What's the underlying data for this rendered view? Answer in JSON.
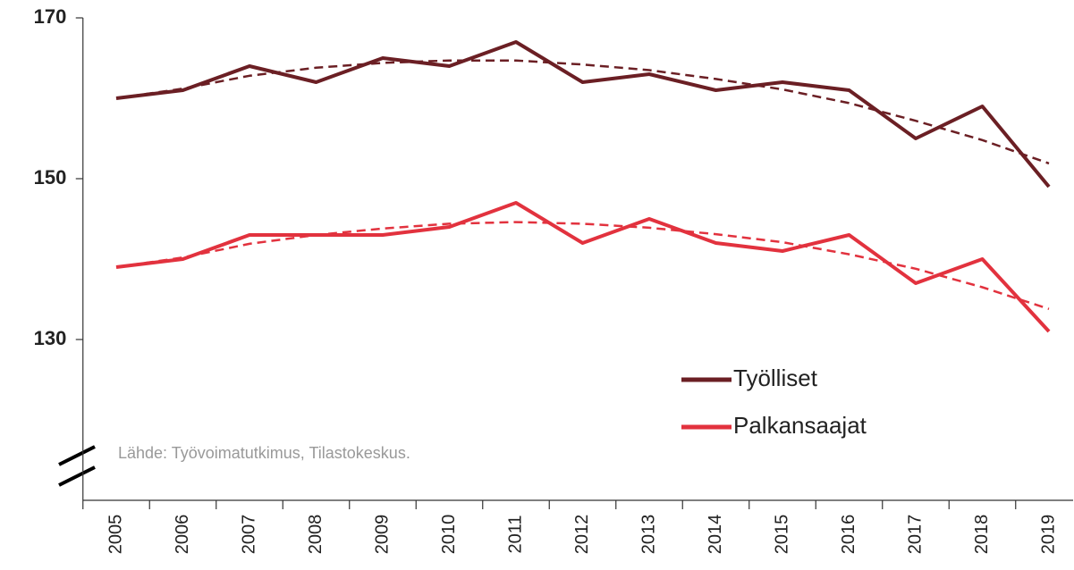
{
  "chart_data": {
    "type": "line",
    "categories": [
      "2005",
      "2006",
      "2007",
      "2008",
      "2009",
      "2010",
      "2011",
      "2012",
      "2013",
      "2014",
      "2015",
      "2016",
      "2017",
      "2018",
      "2019"
    ],
    "series": [
      {
        "name": "Työlliset",
        "color": "#6b1f24",
        "values": [
          160,
          161,
          164,
          162,
          165,
          164,
          167,
          162,
          163,
          161,
          162,
          161,
          155,
          159,
          149
        ],
        "trend": [
          160,
          161.2,
          162.8,
          163.8,
          164.4,
          164.7,
          164.7,
          164.2,
          163.5,
          162.4,
          161.1,
          159.4,
          157.2,
          154.8,
          151.9
        ]
      },
      {
        "name": "Palkansaajat",
        "color": "#e2323e",
        "values": [
          139,
          140,
          143,
          143,
          143,
          144,
          147,
          142,
          145,
          142,
          141,
          143,
          137,
          140,
          131
        ],
        "trend": [
          139,
          140.2,
          141.9,
          143,
          143.8,
          144.4,
          144.6,
          144.4,
          143.9,
          143.1,
          142.1,
          140.6,
          138.8,
          136.5,
          133.8
        ]
      }
    ],
    "ylim": [
      110,
      170
    ],
    "yticks": [
      130,
      150,
      170
    ],
    "source": "Lähde: Työvoimatutkimus, Tilastokeskus.",
    "legend": "lower right"
  }
}
